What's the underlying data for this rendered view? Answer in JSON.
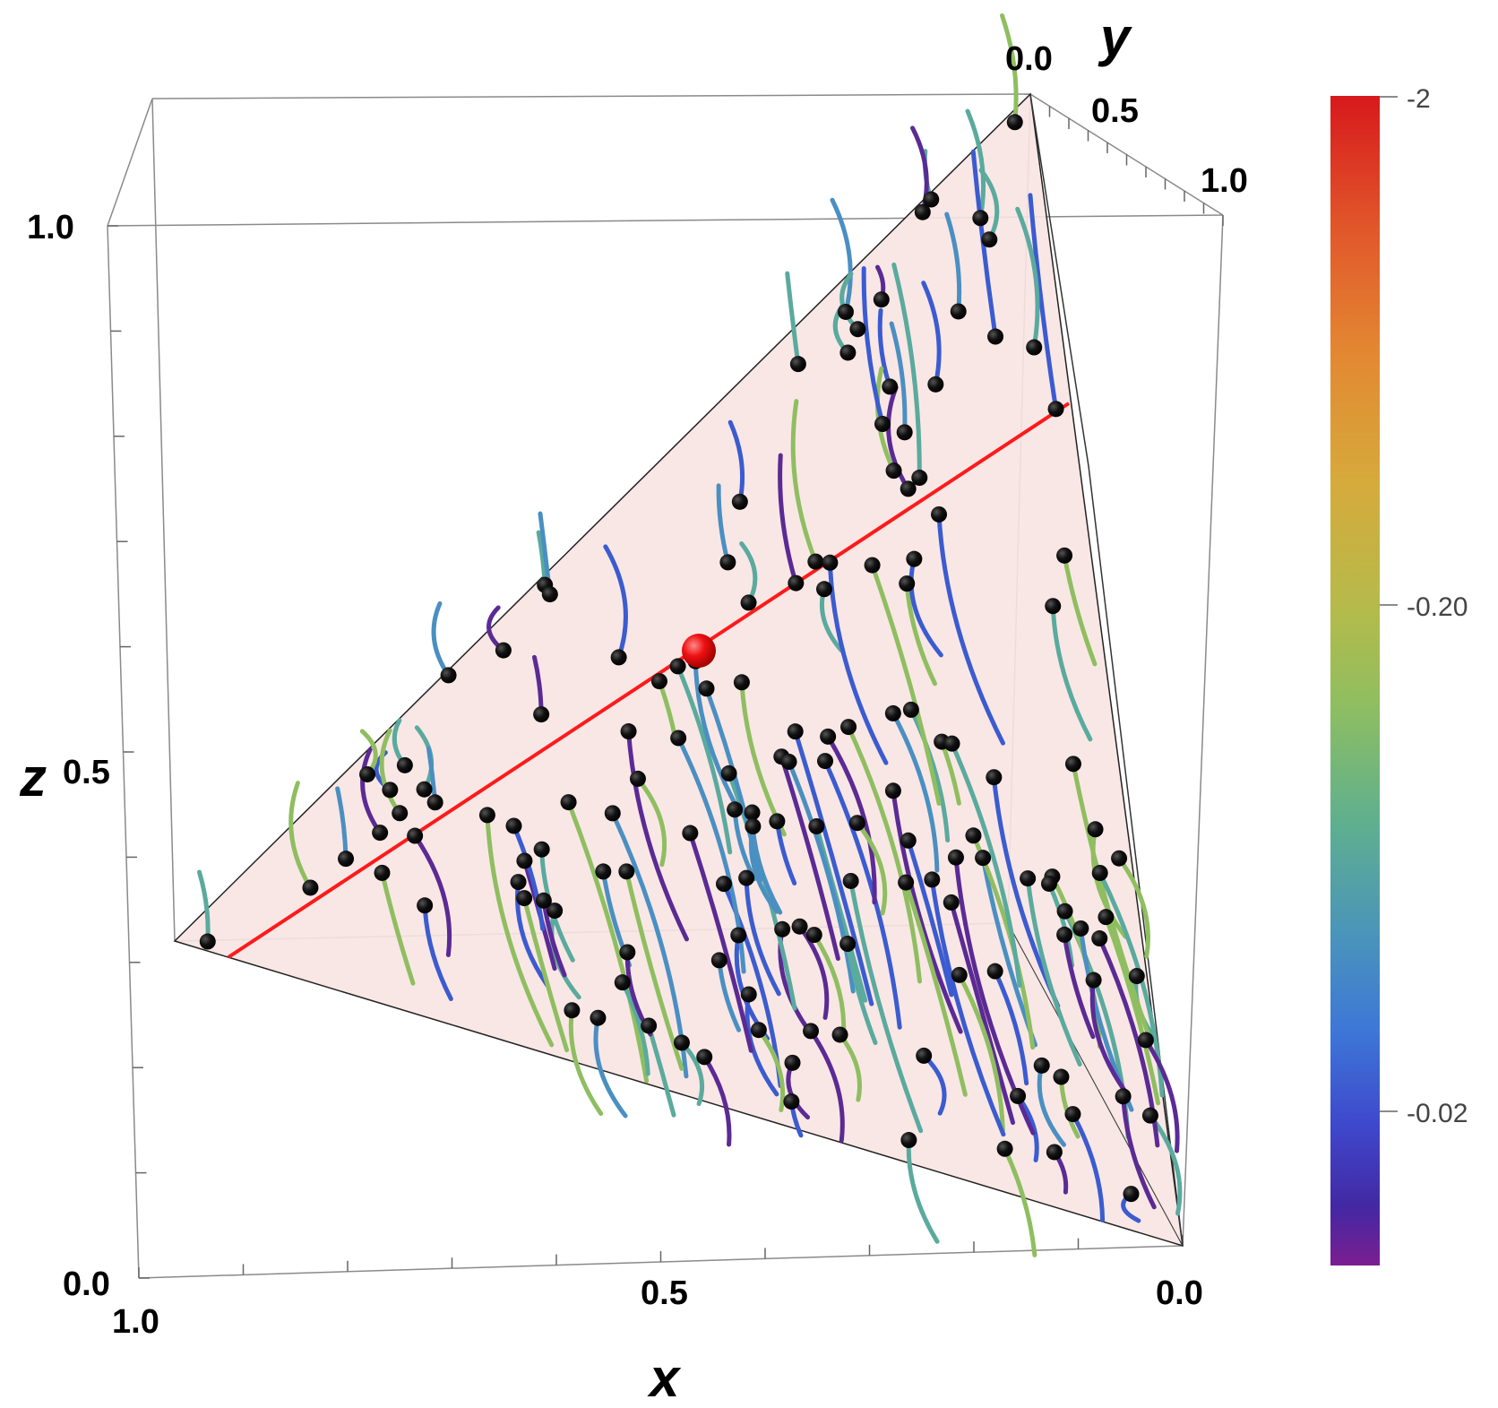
{
  "chart_data": {
    "type": "3d-streamline",
    "axes": {
      "x": {
        "label": "x",
        "ticks": [
          "1.0",
          "0.5",
          "0.0"
        ]
      },
      "y": {
        "label": "y",
        "ticks": [
          "0.0",
          "0.5",
          "1.0"
        ]
      },
      "z": {
        "label": "z",
        "ticks": [
          "0.0",
          "0.5",
          "1.0"
        ]
      }
    },
    "surface": {
      "description_color": "#f8e4e2",
      "edge_color": "#222222"
    },
    "fixed_line_color": "#ff1a1a",
    "fixed_point_color": "#ee1111",
    "colorbar": {
      "labels": [
        "-2",
        "-0.20",
        "-0.02"
      ],
      "colors": [
        "#d7191c",
        "#e07b2b",
        "#d8ad3a",
        "#a5c152",
        "#73b77e",
        "#4fa0aa",
        "#3a80d6",
        "#3e48cc",
        "#4528a8",
        "#7a1e93"
      ]
    },
    "trajectory_palette": [
      "#5b2a94",
      "#3b5bd0",
      "#4a8fc2",
      "#5aaa9e",
      "#8fbe60"
    ]
  }
}
